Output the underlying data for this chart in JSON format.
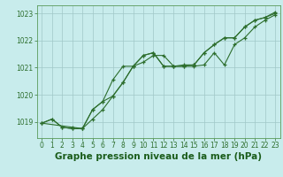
{
  "xlabel": "Graphe pression niveau de la mer (hPa)",
  "xlabel_fontsize": 7.5,
  "bg_color": "#c8ecec",
  "grid_color": "#a0c8c8",
  "line_color": "#2d6e2d",
  "marker": "+",
  "xlim": [
    -0.5,
    23.5
  ],
  "ylim": [
    1018.4,
    1023.3
  ],
  "yticks": [
    1019,
    1020,
    1021,
    1022,
    1023
  ],
  "xticks": [
    0,
    1,
    2,
    3,
    4,
    5,
    6,
    7,
    8,
    9,
    10,
    11,
    12,
    13,
    14,
    15,
    16,
    17,
    18,
    19,
    20,
    21,
    22,
    23
  ],
  "line1_x": [
    0,
    1,
    2,
    3,
    4,
    5,
    6,
    7,
    8,
    9,
    10,
    11,
    12,
    13,
    14,
    15,
    16,
    17,
    18,
    19,
    20,
    21,
    22,
    23
  ],
  "line1_y": [
    1018.95,
    1019.1,
    1018.8,
    1018.75,
    1018.75,
    1019.45,
    1019.75,
    1019.95,
    1020.45,
    1021.05,
    1021.2,
    1021.45,
    1021.45,
    1021.05,
    1021.05,
    1021.05,
    1021.1,
    1021.55,
    1021.1,
    1021.85,
    1022.1,
    1022.5,
    1022.75,
    1022.95
  ],
  "line2_x": [
    0,
    1,
    2,
    3,
    4,
    5,
    6,
    7,
    8,
    9,
    10,
    11,
    12,
    13,
    14,
    15,
    16,
    17,
    18,
    19,
    20,
    21,
    22,
    23
  ],
  "line2_y": [
    1018.95,
    1019.1,
    1018.8,
    1018.75,
    1018.75,
    1019.45,
    1019.75,
    1020.55,
    1021.05,
    1021.05,
    1021.45,
    1021.55,
    1021.05,
    1021.05,
    1021.05,
    1021.1,
    1021.55,
    1021.85,
    1022.1,
    1022.1,
    1022.5,
    1022.75,
    1022.85,
    1023.0
  ],
  "line3_x": [
    0,
    3,
    4,
    5,
    6,
    7,
    8,
    9,
    10,
    11,
    12,
    13,
    14,
    15,
    16,
    17,
    18,
    19,
    20,
    21,
    22,
    23
  ],
  "line3_y": [
    1018.95,
    1018.8,
    1018.75,
    1019.1,
    1019.45,
    1019.95,
    1020.45,
    1021.05,
    1021.45,
    1021.55,
    1021.05,
    1021.05,
    1021.1,
    1021.1,
    1021.55,
    1021.85,
    1022.1,
    1022.1,
    1022.5,
    1022.75,
    1022.85,
    1023.05
  ]
}
